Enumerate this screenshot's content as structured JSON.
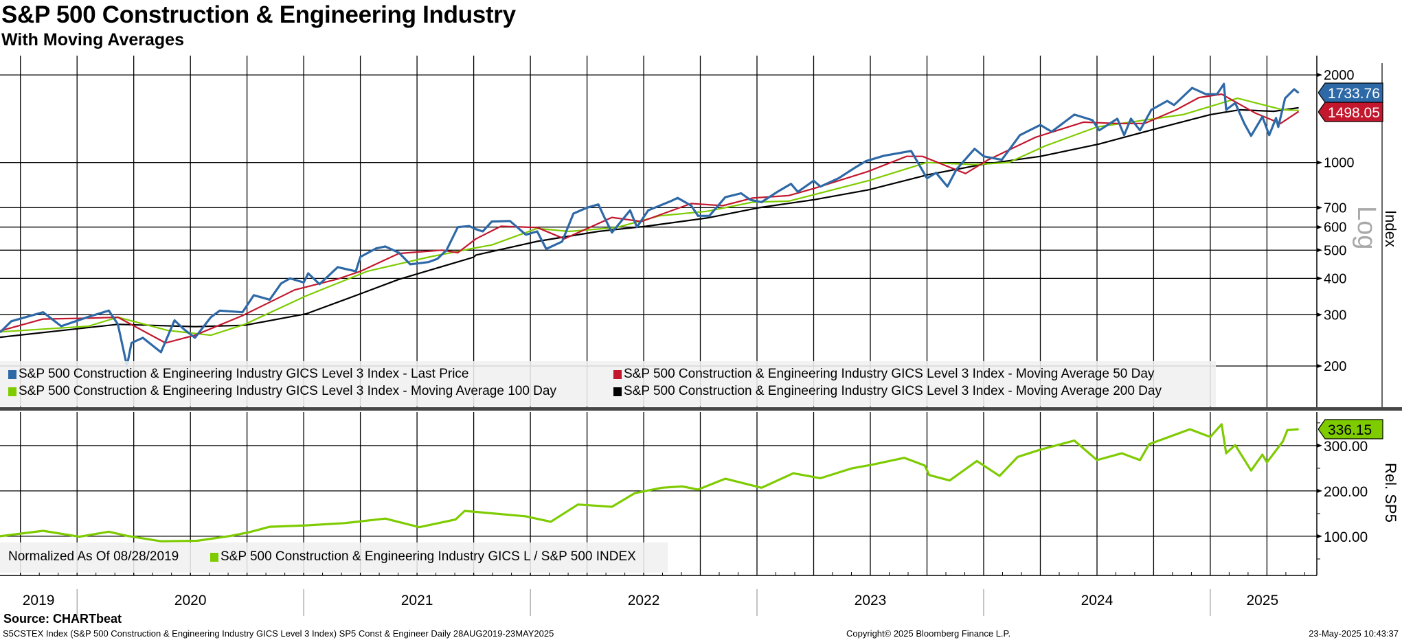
{
  "header": {
    "title": "S&P 500 Construction & Engineering Industry",
    "subtitle": "With Moving Averages"
  },
  "colors": {
    "last_price": "#2e69a7",
    "ma50": "#c2172d",
    "ma100": "#7ecb00",
    "ma200": "#000000",
    "relative": "#7ecb00"
  },
  "chart_data": [
    {
      "type": "line",
      "title": "S&P 500 Construction & Engineering Industry",
      "yscale": "log",
      "ylabel": "Index",
      "scale_label": "Log",
      "xlim": [
        2019.66,
        2025.47
      ],
      "ylim": [
        142,
        2330
      ],
      "yticks": [
        200,
        300,
        400,
        500,
        600,
        700,
        1000,
        2000
      ],
      "ytick_labels": [
        "200",
        "300",
        "400",
        "500",
        "600",
        "700",
        "1000",
        "2000"
      ],
      "grid": true,
      "legend_position": "bottom-left",
      "last_value_tags": [
        {
          "series": "last_price",
          "label": "1733.76",
          "value": 1733.76
        },
        {
          "series": "ma50",
          "label": "1498.05",
          "value": 1498.05
        }
      ],
      "series": [
        {
          "key": "last_price",
          "name": "S&P 500 Construction & Engineering Industry GICS Level 3 Index - Last Price",
          "x": [
            2019.66,
            2019.71,
            2019.85,
            2019.93,
            2020.05,
            2020.14,
            2020.18,
            2020.22,
            2020.24,
            2020.29,
            2020.37,
            2020.43,
            2020.47,
            2020.52,
            2020.59,
            2020.63,
            2020.73,
            2020.78,
            2020.85,
            2020.9,
            2020.94,
            2021.0,
            2021.02,
            2021.07,
            2021.15,
            2021.23,
            2021.25,
            2021.32,
            2021.36,
            2021.42,
            2021.47,
            2021.55,
            2021.59,
            2021.63,
            2021.68,
            2021.73,
            2021.76,
            2021.79,
            2021.83,
            2021.91,
            2021.98,
            2022.03,
            2022.07,
            2022.14,
            2022.19,
            2022.25,
            2022.3,
            2022.33,
            2022.36,
            2022.44,
            2022.47,
            2022.52,
            2022.62,
            2022.65,
            2022.71,
            2022.74,
            2022.79,
            2022.86,
            2022.93,
            2022.97,
            2023.02,
            2023.09,
            2023.15,
            2023.18,
            2023.25,
            2023.28,
            2023.36,
            2023.43,
            2023.48,
            2023.56,
            2023.68,
            2023.75,
            2023.79,
            2023.84,
            2023.88,
            2023.96,
            2024.0,
            2024.08,
            2024.16,
            2024.25,
            2024.3,
            2024.4,
            2024.48,
            2024.51,
            2024.59,
            2024.62,
            2024.65,
            2024.69,
            2024.74,
            2024.81,
            2024.84,
            2024.92,
            2024.98,
            2025.03,
            2025.06,
            2025.07,
            2025.11,
            2025.15,
            2025.18,
            2025.23,
            2025.26,
            2025.29,
            2025.3,
            2025.33,
            2025.37,
            2025.39
          ],
          "y": [
            261,
            285,
            306,
            274,
            295,
            310,
            278,
            200,
            240,
            250,
            223,
            287,
            268,
            250,
            294,
            310,
            306,
            350,
            338,
            384,
            400,
            387,
            416,
            382,
            437,
            423,
            474,
            507,
            515,
            490,
            447,
            455,
            467,
            500,
            600,
            605,
            590,
            580,
            627,
            630,
            565,
            580,
            505,
            535,
            668,
            700,
            718,
            640,
            575,
            685,
            600,
            685,
            737,
            756,
            711,
            656,
            656,
            760,
            784,
            745,
            731,
            793,
            845,
            793,
            866,
            827,
            883,
            958,
            1011,
            1055,
            1096,
            883,
            922,
            827,
            947,
            1115,
            1050,
            1022,
            1242,
            1347,
            1276,
            1461,
            1398,
            1290,
            1414,
            1242,
            1414,
            1290,
            1518,
            1628,
            1576,
            1804,
            1718,
            1718,
            1863,
            1518,
            1602,
            1362,
            1235,
            1437,
            1242,
            1422,
            1325,
            1663,
            1785,
            1733.76
          ]
        },
        {
          "key": "ma50",
          "name": "S&P 500 Construction & Engineering Industry GICS Level 3 Index - Moving Average 50 Day",
          "x": [
            2019.66,
            2019.85,
            2020.05,
            2020.18,
            2020.39,
            2020.52,
            2020.73,
            2020.96,
            2021.15,
            2021.25,
            2021.42,
            2021.61,
            2021.68,
            2021.76,
            2021.87,
            2022.03,
            2022.15,
            2022.36,
            2022.49,
            2022.71,
            2022.85,
            2022.98,
            2023.14,
            2023.25,
            2023.49,
            2023.66,
            2023.73,
            2023.92,
            2024.02,
            2024.23,
            2024.44,
            2024.59,
            2024.71,
            2024.85,
            2024.95,
            2025.05,
            2025.2,
            2025.31,
            2025.39
          ],
          "y": [
            264,
            290,
            292,
            294,
            240,
            255,
            298,
            365,
            398,
            423,
            487,
            500,
            490,
            547,
            604,
            598,
            547,
            648,
            627,
            723,
            711,
            755,
            770,
            814,
            932,
            1050,
            1050,
            917,
            1022,
            1222,
            1376,
            1362,
            1362,
            1518,
            1672,
            1718,
            1477,
            1362,
            1498.05
          ]
        },
        {
          "key": "ma100",
          "name": "S&P 500 Construction & Engineering Industry GICS Level 3 Index - Moving Average 100 Day",
          "x": [
            2019.66,
            2020.05,
            2020.18,
            2020.4,
            2020.59,
            2020.74,
            2021.01,
            2021.28,
            2021.55,
            2021.75,
            2021.83,
            2022.03,
            2022.17,
            2022.38,
            2022.57,
            2022.78,
            2022.98,
            2023.14,
            2023.49,
            2023.74,
            2023.75,
            2023.96,
            2024.11,
            2024.27,
            2024.5,
            2024.88,
            2025.12,
            2025.32,
            2025.39
          ],
          "y": [
            262,
            274,
            294,
            265,
            255,
            278,
            348,
            423,
            473,
            508,
            521,
            594,
            580,
            598,
            656,
            680,
            731,
            737,
            866,
            995,
            1000,
            984,
            1000,
            1139,
            1325,
            1461,
            1663,
            1518,
            1510
          ]
        },
        {
          "key": "ma200",
          "name": "S&P 500 Construction & Engineering Industry GICS Level 3 Index - Moving Average 200 Day",
          "x": [
            2019.66,
            2020.18,
            2020.52,
            2020.74,
            2021.01,
            2021.25,
            2021.42,
            2021.75,
            2021.76,
            2022.03,
            2022.3,
            2022.51,
            2022.78,
            2023.01,
            2023.25,
            2023.49,
            2023.74,
            2023.75,
            2023.99,
            2024.25,
            2024.51,
            2024.79,
            2025.0,
            2025.13,
            2025.28,
            2025.39
          ],
          "y": [
            251,
            278,
            273,
            276,
            302,
            354,
            397,
            473,
            481,
            536,
            580,
            604,
            645,
            700,
            745,
            805,
            902,
            907,
            984,
            1050,
            1158,
            1325,
            1461,
            1518,
            1500,
            1543
          ]
        }
      ]
    },
    {
      "type": "line",
      "ylabel": "Rel. SP5",
      "xlim": [
        2019.66,
        2025.47
      ],
      "ylim": [
        13.6,
        374
      ],
      "yticks": [
        100,
        200,
        300
      ],
      "ytick_labels": [
        "100.00",
        "200.00",
        "300.00"
      ],
      "minor_yticks": [
        50,
        150,
        250,
        350
      ],
      "grid": true,
      "legend_position": "bottom-left",
      "legend_note": "Normalized As Of 08/28/2019",
      "last_value_tags": [
        {
          "series": "relative",
          "label": "336.15",
          "value": 336.15
        }
      ],
      "series": [
        {
          "key": "relative",
          "name": "S&P 500 Construction & Engineering Industry GICS L / S&P 500 INDEX",
          "x": [
            2019.66,
            2019.85,
            2020.01,
            2020.14,
            2020.22,
            2020.37,
            2020.53,
            2020.68,
            2020.76,
            2020.85,
            2021.01,
            2021.18,
            2021.36,
            2021.51,
            2021.67,
            2021.71,
            2021.98,
            2022.09,
            2022.21,
            2022.36,
            2022.46,
            2022.58,
            2022.67,
            2022.74,
            2022.86,
            2023.02,
            2023.16,
            2023.28,
            2023.42,
            2023.51,
            2023.65,
            2023.74,
            2023.76,
            2023.85,
            2023.97,
            2024.07,
            2024.15,
            2024.25,
            2024.4,
            2024.5,
            2024.61,
            2024.69,
            2024.73,
            2024.91,
            2025.0,
            2025.05,
            2025.07,
            2025.11,
            2025.18,
            2025.23,
            2025.25,
            2025.32,
            2025.34,
            2025.39
          ],
          "y": [
            100,
            112,
            99,
            110,
            101,
            89,
            90,
            101,
            109,
            121,
            124,
            129,
            139,
            120,
            137,
            156,
            144,
            132,
            170,
            165,
            195,
            207,
            210,
            203,
            227,
            207,
            239,
            228,
            250,
            258,
            273,
            256,
            235,
            223,
            266,
            233,
            275,
            291,
            311,
            268,
            283,
            268,
            303,
            336,
            319,
            347,
            283,
            301,
            245,
            280,
            263,
            309,
            334,
            336.15
          ]
        }
      ]
    }
  ],
  "x_axis": {
    "year_labels": [
      {
        "label": "2019",
        "center": 2019.83
      },
      {
        "label": "2020",
        "center": 2020.5
      },
      {
        "label": "2021",
        "center": 2021.5
      },
      {
        "label": "2022",
        "center": 2022.5
      },
      {
        "label": "2023",
        "center": 2023.5
      },
      {
        "label": "2024",
        "center": 2024.5
      },
      {
        "label": "2025",
        "center": 2025.23
      }
    ],
    "year_boundaries": [
      2020,
      2021,
      2022,
      2023,
      2024,
      2025
    ]
  },
  "footer": {
    "source": "Source: CHARTbeat",
    "description": "S5CSTEX Index (S&P 500 Construction & Engineering Industry GICS Level 3 Index) SP5 Const & Engineer  Daily 28AUG2019-23MAY2025",
    "copyright": "Copyright© 2025 Bloomberg Finance L.P.",
    "timestamp": "23-May-2025 10:43:37"
  }
}
